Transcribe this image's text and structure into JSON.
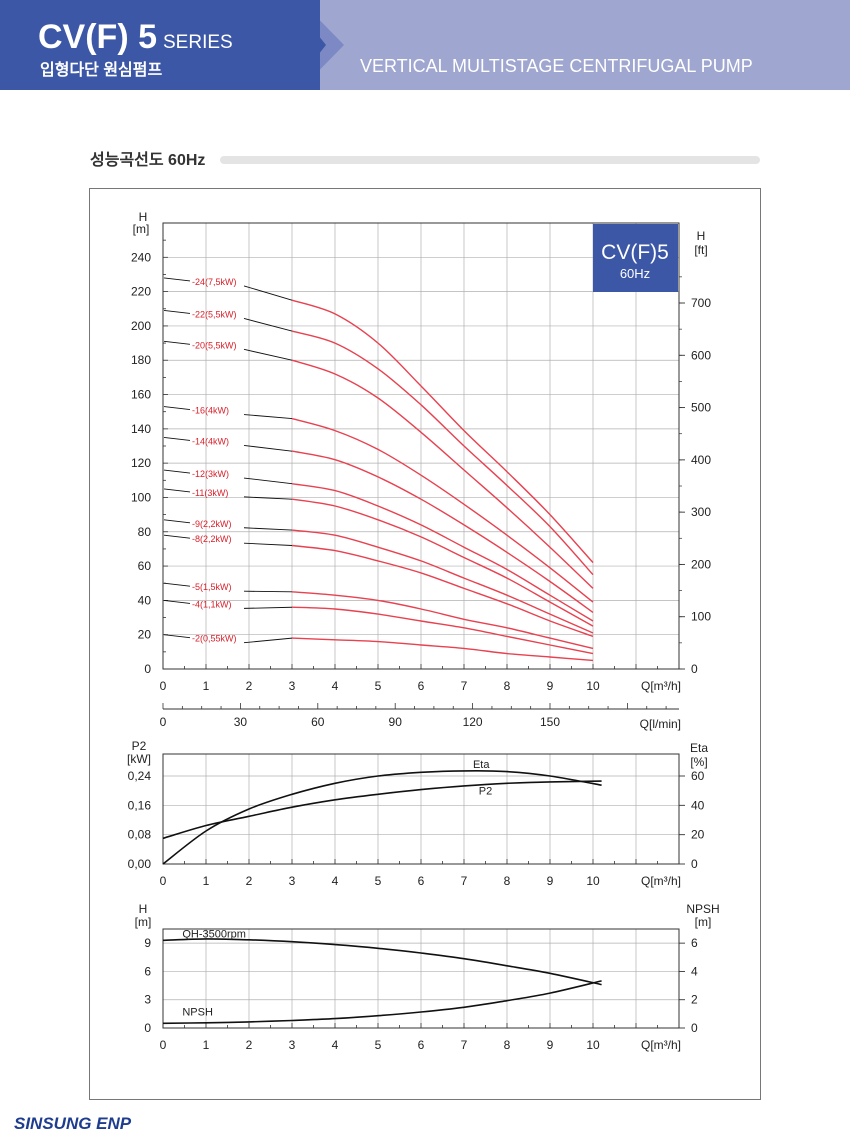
{
  "header": {
    "series": "CV(F) 5",
    "series_suffix": "SERIES",
    "subtitle_kr": "입형다단 원심펌프",
    "pump_type": "VERTICAL MULTISTAGE CENTRIFUGAL PUMP"
  },
  "section_title": "성능곡선도 60Hz",
  "footer_brand": "SINSUNG ENP",
  "badge": {
    "model": "CV(F)5",
    "freq": "60Hz",
    "color": "#3c57a6"
  },
  "colors": {
    "curve": "#e8414f",
    "label": "#d8202a",
    "grid": "#b0b0b0",
    "black_curve": "#111111"
  },
  "chart_data": [
    {
      "type": "line",
      "ylabel": "H\n[m]",
      "ylabel_right": "H\n[ft]",
      "xlabel": "Q[m³/h]",
      "xlabel_secondary": "Q[l/min]",
      "xlim": [
        0,
        12
      ],
      "ylim": [
        0,
        260
      ],
      "x_ticks": [
        "0",
        "1",
        "2",
        "3",
        "4",
        "5",
        "6",
        "7",
        "8",
        "9",
        "10"
      ],
      "y_ticks": [
        "0",
        "20",
        "40",
        "60",
        "80",
        "100",
        "120",
        "140",
        "160",
        "180",
        "200",
        "220",
        "240"
      ],
      "y_ticks_right": [
        "0",
        "100",
        "200",
        "300",
        "400",
        "500",
        "600",
        "700"
      ],
      "secondary_x_ticks": [
        "0",
        "30",
        "60",
        "90",
        "120",
        "150"
      ],
      "grid": true,
      "series": [
        {
          "name": "24(7,5kW)",
          "label_y": 228,
          "x": [
            3,
            4,
            5,
            6,
            7,
            8,
            9,
            10
          ],
          "y": [
            215,
            207,
            190,
            165,
            139,
            115,
            90,
            62
          ]
        },
        {
          "name": "22(5,5kW)",
          "label_y": 209,
          "x": [
            3,
            4,
            5,
            6,
            7,
            8,
            9,
            10
          ],
          "y": [
            197,
            190,
            175,
            154,
            130,
            107,
            83,
            55
          ]
        },
        {
          "name": "20(5,5kW)",
          "label_y": 191,
          "x": [
            3,
            4,
            5,
            6,
            7,
            8,
            9,
            10
          ],
          "y": [
            180,
            172,
            158,
            138,
            116,
            94,
            71,
            47
          ]
        },
        {
          "name": "16(4kW)",
          "label_y": 153,
          "x": [
            3,
            4,
            5,
            6,
            7,
            8,
            9,
            10
          ],
          "y": [
            146,
            139,
            128,
            113,
            96,
            78,
            59,
            39
          ]
        },
        {
          "name": "14(4kW)",
          "label_y": 135,
          "x": [
            3,
            4,
            5,
            6,
            7,
            8,
            9,
            10
          ],
          "y": [
            127,
            122,
            112,
            99,
            84,
            68,
            51,
            33
          ]
        },
        {
          "name": "12(3kW)",
          "label_y": 116,
          "x": [
            3,
            4,
            5,
            6,
            7,
            8,
            9,
            10
          ],
          "y": [
            108,
            104,
            95,
            84,
            71,
            58,
            43,
            28
          ]
        },
        {
          "name": "11(3kW)",
          "label_y": 105,
          "x": [
            3,
            4,
            5,
            6,
            7,
            8,
            9,
            10
          ],
          "y": [
            99,
            95,
            87,
            77,
            65,
            53,
            39,
            25
          ]
        },
        {
          "name": "9(2,2kW)",
          "label_y": 87,
          "x": [
            3,
            4,
            5,
            6,
            7,
            8,
            9,
            10
          ],
          "y": [
            81,
            78,
            71,
            63,
            53,
            43,
            32,
            21
          ]
        },
        {
          "name": "8(2,2kW)",
          "label_y": 78,
          "x": [
            3,
            4,
            5,
            6,
            7,
            8,
            9,
            10
          ],
          "y": [
            72,
            69,
            63,
            56,
            47,
            38,
            28,
            19
          ]
        },
        {
          "name": "5(1,5kW)",
          "label_y": 50,
          "x": [
            3,
            4,
            5,
            6,
            7,
            8,
            9,
            10
          ],
          "y": [
            45,
            43,
            40,
            35,
            29,
            24,
            18,
            12
          ]
        },
        {
          "name": "4(1,1kW)",
          "label_y": 40,
          "x": [
            3,
            4,
            5,
            6,
            7,
            8,
            9,
            10
          ],
          "y": [
            36,
            35,
            32,
            28,
            24,
            19,
            14,
            9
          ]
        },
        {
          "name": "2(0,55kW)",
          "label_y": 20,
          "x": [
            3,
            4,
            5,
            6,
            7,
            8,
            9,
            10
          ],
          "y": [
            18,
            17,
            16,
            14,
            12,
            9,
            7,
            5
          ]
        }
      ]
    },
    {
      "type": "line",
      "ylabel": "P2\n[kW]",
      "ylabel_right": "Eta\n[%]",
      "xlabel": "Q[m³/h]",
      "xlim": [
        0,
        12
      ],
      "ylim": [
        0,
        0.3
      ],
      "x_ticks": [
        "0",
        "1",
        "2",
        "3",
        "4",
        "5",
        "6",
        "7",
        "8",
        "9",
        "10"
      ],
      "y_ticks": [
        "0,00",
        "0,08",
        "0,16",
        "0,24"
      ],
      "y_ticks_right": [
        "0",
        "20",
        "40",
        "60"
      ],
      "grid": true,
      "series": [
        {
          "name": "Eta",
          "x": [
            0,
            1,
            2,
            3,
            4,
            5,
            6,
            7,
            8,
            9,
            10.2
          ],
          "y": [
            0.0,
            0.09,
            0.15,
            0.19,
            0.22,
            0.24,
            0.25,
            0.254,
            0.252,
            0.24,
            0.215
          ]
        },
        {
          "name": "P2",
          "x": [
            0,
            1,
            2,
            3,
            4,
            5,
            6,
            7,
            8,
            9,
            10.2
          ],
          "y": [
            0.07,
            0.105,
            0.13,
            0.155,
            0.175,
            0.19,
            0.203,
            0.213,
            0.22,
            0.224,
            0.226
          ]
        }
      ]
    },
    {
      "type": "line",
      "ylabel": "H\n[m]",
      "ylabel_right": "NPSH\n[m]",
      "xlabel": "Q[m³/h]",
      "xlim": [
        0,
        12
      ],
      "ylim": [
        0,
        10.5
      ],
      "x_ticks": [
        "0",
        "1",
        "2",
        "3",
        "4",
        "5",
        "6",
        "7",
        "8",
        "9",
        "10"
      ],
      "y_ticks": [
        "0",
        "3",
        "6",
        "9"
      ],
      "y_ticks_right": [
        "0",
        "2",
        "4",
        "6"
      ],
      "grid": true,
      "series": [
        {
          "name": "QH-3500rpm",
          "x": [
            0,
            1,
            2,
            3,
            4,
            5,
            6,
            7,
            8,
            9,
            10.2
          ],
          "y": [
            9.3,
            9.45,
            9.35,
            9.15,
            8.85,
            8.45,
            7.95,
            7.35,
            6.6,
            5.8,
            4.6
          ]
        },
        {
          "name": "NPSH",
          "x": [
            0,
            1,
            2,
            3,
            4,
            5,
            6,
            7,
            8,
            9,
            10.2
          ],
          "y": [
            0.5,
            0.55,
            0.65,
            0.8,
            1.0,
            1.3,
            1.7,
            2.2,
            2.9,
            3.7,
            5.0
          ]
        }
      ]
    }
  ]
}
